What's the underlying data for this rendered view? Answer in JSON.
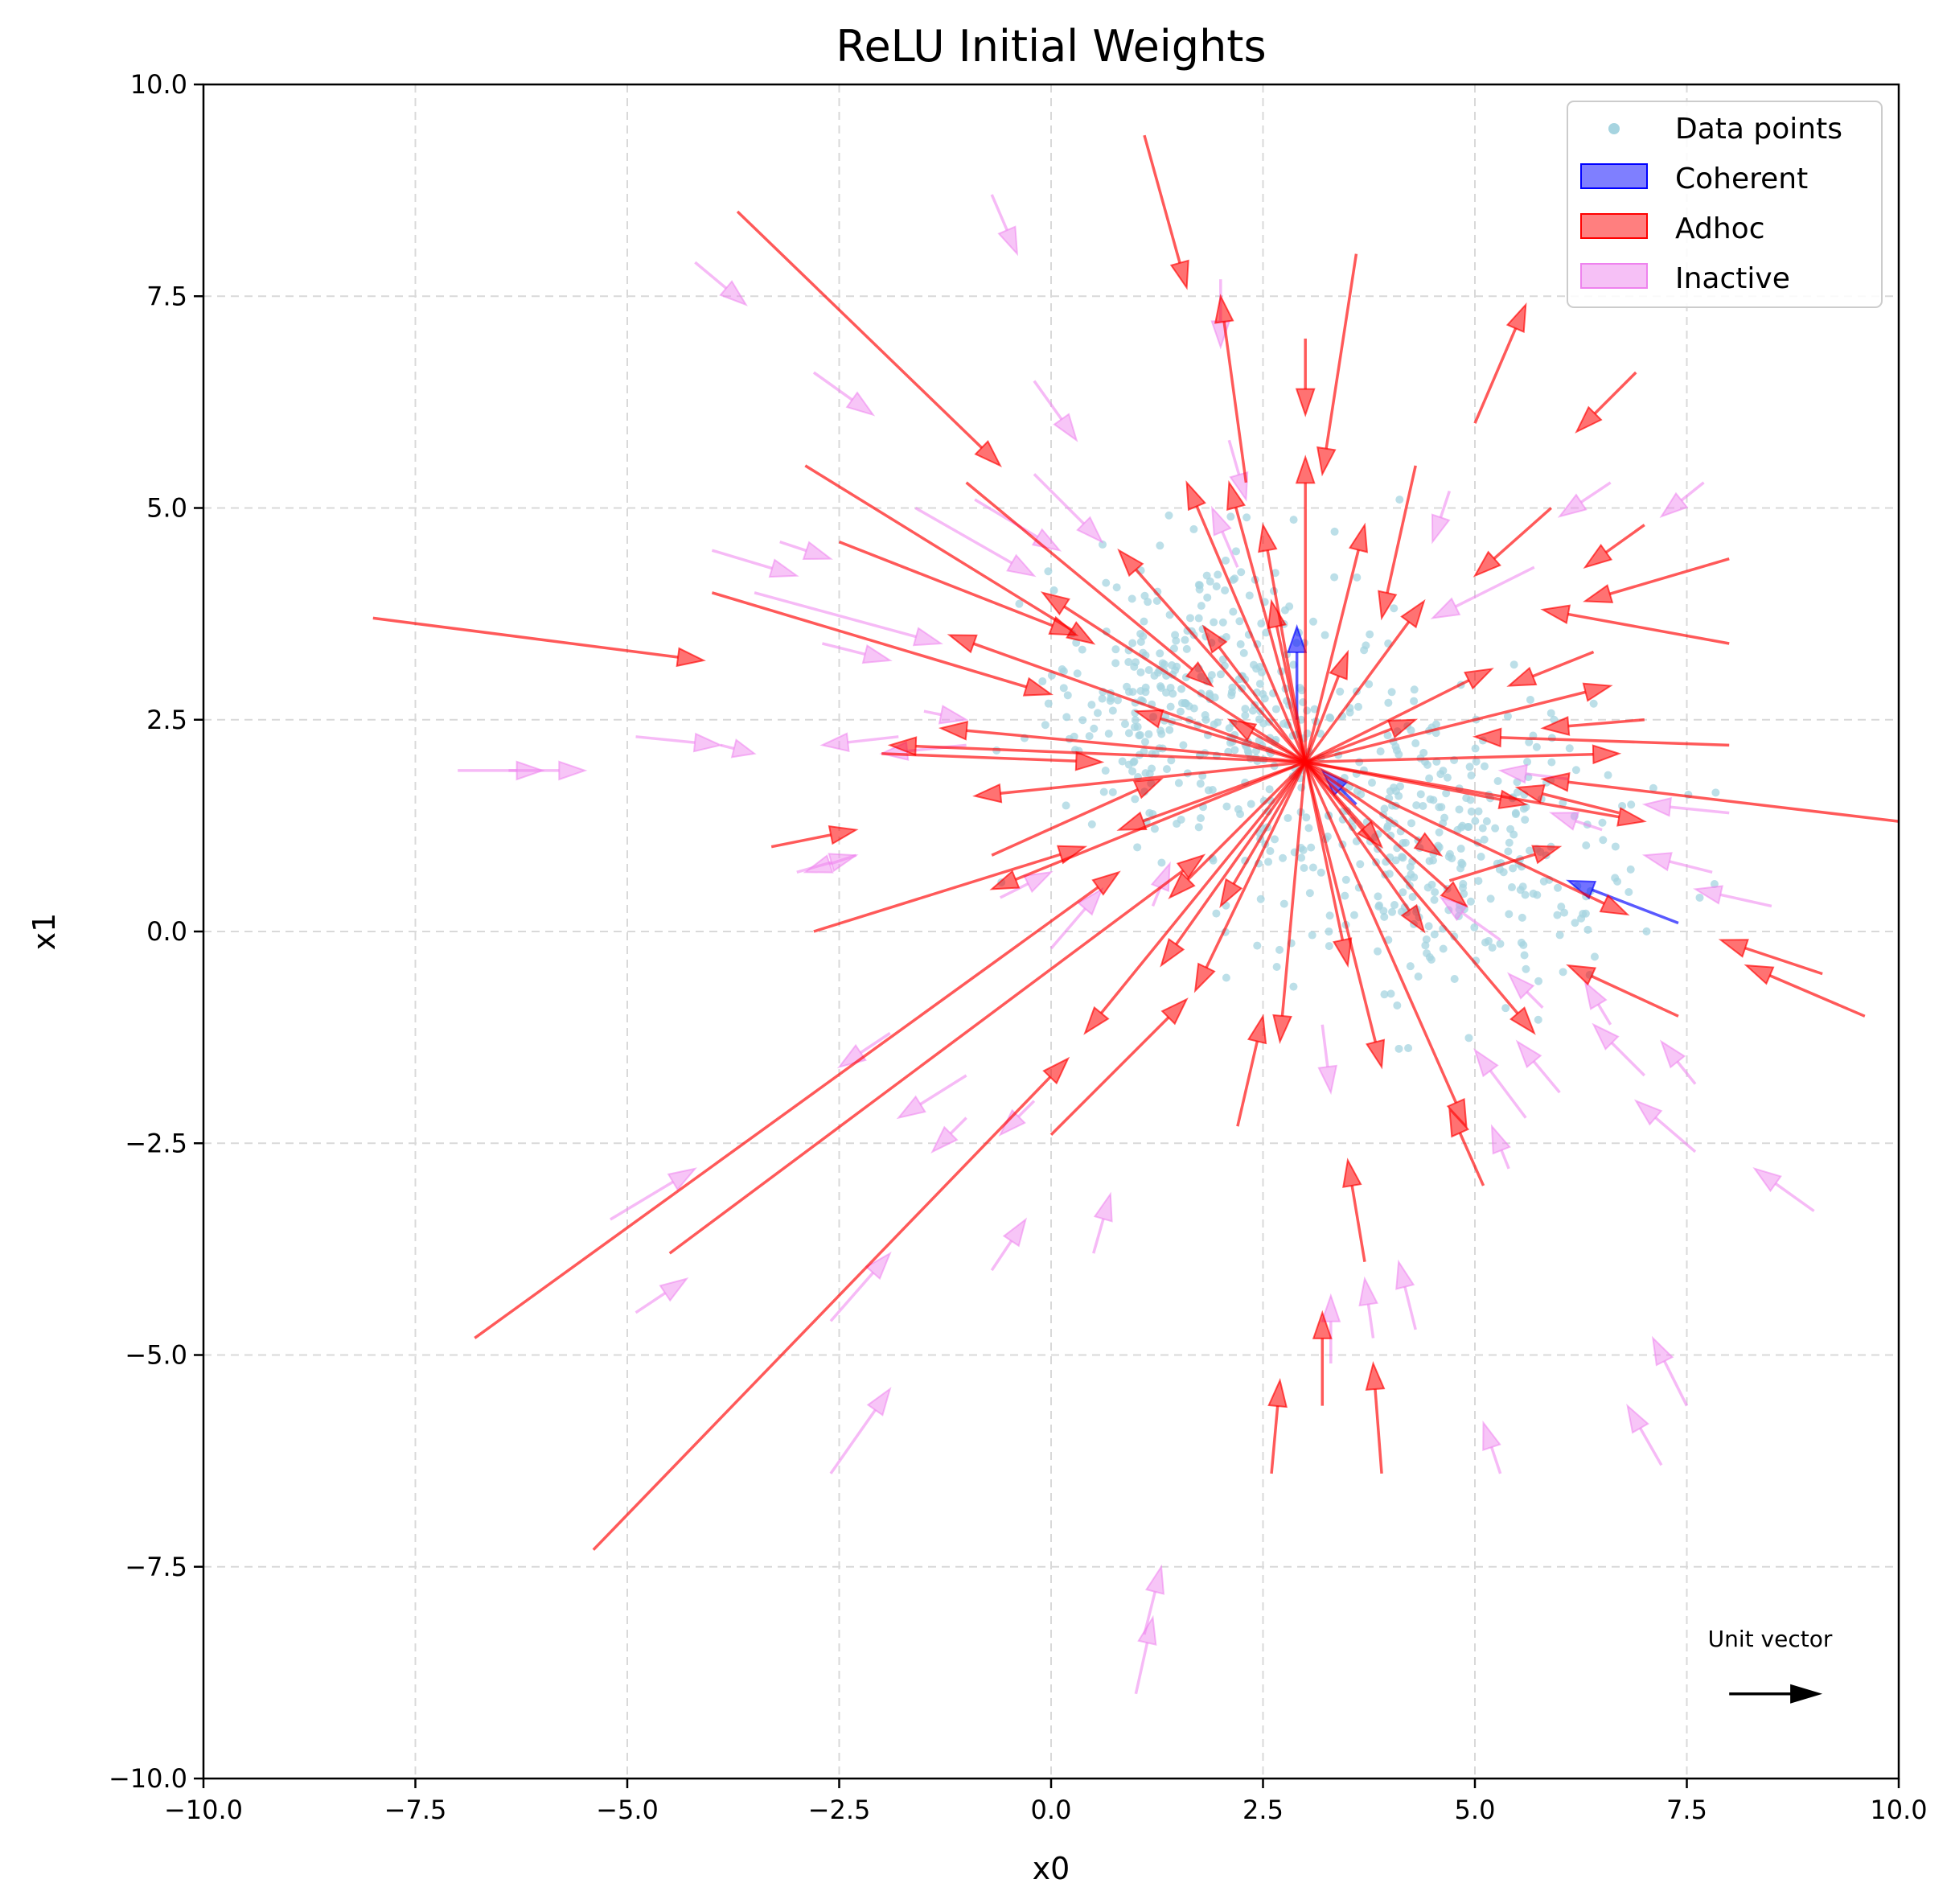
{
  "chart_data": {
    "type": "scatter",
    "title": "ReLU Initial Weights",
    "xlabel": "x0",
    "ylabel": "x1",
    "xlim": [
      -10,
      10
    ],
    "ylim": [
      -10,
      10
    ],
    "xticks": [
      -10,
      -7.5,
      -5,
      -2.5,
      0,
      2.5,
      5,
      7.5,
      10
    ],
    "yticks": [
      -10,
      -7.5,
      -5,
      -2.5,
      0,
      2.5,
      5,
      7.5,
      10
    ],
    "xtick_labels": [
      "−10.0",
      "−7.5",
      "−5.0",
      "−2.5",
      "0.0",
      "2.5",
      "5.0",
      "7.5",
      "10.0"
    ],
    "ytick_labels": [
      "−10.0",
      "−7.5",
      "−5.0",
      "−2.5",
      "0.0",
      "2.5",
      "5.0",
      "7.5",
      "10.0"
    ],
    "grid": true,
    "legend_position": "top-right",
    "legend": [
      {
        "label": "Data points",
        "kind": "dot",
        "color": "#a6d4e0"
      },
      {
        "label": "Coherent",
        "kind": "patch",
        "color": "#0000ff"
      },
      {
        "label": "Adhoc",
        "kind": "patch",
        "color": "#ff0000"
      },
      {
        "label": "Inactive",
        "kind": "patch",
        "color": "#ee82ee"
      }
    ],
    "colors": {
      "data": "#a6d4e0",
      "coherent": "#0000ff",
      "adhoc": "#ff0000",
      "inactive": "#ee82ee"
    },
    "data_points": {
      "cluster_1": {
        "center": [
          1.8,
          2.7
        ],
        "spread": [
          1.0,
          0.9
        ]
      },
      "cluster_2": {
        "center": [
          4.5,
          1.0
        ],
        "spread": [
          1.2,
          0.9
        ]
      },
      "count": 700
    },
    "arrow_groups": [
      {
        "name": "Coherent",
        "arrows": [
          [
            2.9,
            2.5,
            2.9,
            3.6
          ],
          [
            7.4,
            0.1,
            6.1,
            0.6
          ],
          [
            3.6,
            1.5,
            3.2,
            1.9
          ]
        ]
      },
      {
        "name": "Adhoc",
        "arrows": [
          [
            -8.0,
            3.7,
            -4.1,
            3.2
          ],
          [
            -3.7,
            8.5,
            -0.6,
            5.5
          ],
          [
            1.1,
            9.4,
            1.6,
            7.6
          ],
          [
            2.3,
            5.3,
            2.0,
            7.5
          ],
          [
            3.0,
            7.0,
            3.0,
            6.1
          ],
          [
            3.6,
            8.0,
            3.2,
            5.4
          ],
          [
            5.0,
            6.0,
            5.6,
            7.4
          ],
          [
            6.9,
            6.6,
            6.2,
            5.9
          ],
          [
            -2.9,
            5.5,
            0.5,
            3.4
          ],
          [
            -2.0,
            2.1,
            0.6,
            2.0
          ],
          [
            -3.3,
            1.0,
            -2.3,
            1.2
          ],
          [
            -2.8,
            0.0,
            0.4,
            1.0
          ],
          [
            -6.8,
            -4.8,
            0.8,
            0.7
          ],
          [
            -5.4,
            -7.3,
            0.2,
            -1.5
          ],
          [
            -4.5,
            -3.8,
            1.8,
            0.9
          ],
          [
            0.0,
            -2.4,
            1.6,
            -0.8
          ],
          [
            2.2,
            -2.3,
            2.5,
            -1.0
          ],
          [
            3.7,
            -3.9,
            3.5,
            -2.7
          ],
          [
            3.2,
            -5.6,
            3.2,
            -4.5
          ],
          [
            2.6,
            -6.4,
            2.7,
            -5.3
          ],
          [
            3.9,
            -6.4,
            3.8,
            -5.1
          ],
          [
            5.1,
            -3.0,
            4.7,
            -2.1
          ],
          [
            7.4,
            -1.0,
            6.1,
            -0.4
          ],
          [
            9.6,
            -1.0,
            8.2,
            -0.4
          ],
          [
            9.1,
            -0.5,
            7.9,
            -0.1
          ],
          [
            10.0,
            1.3,
            5.8,
            1.8
          ],
          [
            8.0,
            2.2,
            5.0,
            2.3
          ],
          [
            7.0,
            2.5,
            5.8,
            2.4
          ],
          [
            8.0,
            4.4,
            6.3,
            3.9
          ],
          [
            8.0,
            3.4,
            5.8,
            3.8
          ],
          [
            7.0,
            4.8,
            6.3,
            4.3
          ],
          [
            6.4,
            3.3,
            5.4,
            2.9
          ],
          [
            5.9,
            5.0,
            5.0,
            4.2
          ],
          [
            4.3,
            5.5,
            3.9,
            3.7
          ],
          [
            -4.0,
            4.0,
            0.0,
            2.8
          ],
          [
            -2.5,
            4.6,
            0.3,
            3.5
          ],
          [
            -1.0,
            5.3,
            1.9,
            2.9
          ],
          [
            -0.7,
            0.9,
            1.3,
            1.8
          ],
          [
            4.7,
            0.6,
            6.0,
            1.0
          ],
          [
            6.7,
            1.4,
            5.5,
            1.7
          ],
          [
            3.0,
            2.0,
            3.0,
            5.6
          ],
          [
            3.0,
            2.0,
            2.1,
            5.3
          ],
          [
            3.0,
            2.0,
            3.7,
            4.8
          ],
          [
            3.0,
            2.0,
            4.4,
            3.9
          ],
          [
            3.0,
            2.0,
            5.2,
            3.1
          ],
          [
            3.0,
            2.0,
            6.7,
            2.1
          ],
          [
            3.0,
            2.0,
            7.0,
            1.3
          ],
          [
            3.0,
            2.0,
            6.8,
            0.2
          ],
          [
            3.0,
            2.0,
            5.7,
            -1.2
          ],
          [
            3.0,
            2.0,
            4.9,
            -2.3
          ],
          [
            3.0,
            2.0,
            3.9,
            -1.6
          ],
          [
            3.0,
            2.0,
            2.7,
            -1.3
          ],
          [
            3.0,
            2.0,
            1.7,
            -0.7
          ],
          [
            3.0,
            2.0,
            0.4,
            -1.2
          ],
          [
            3.0,
            2.0,
            -0.7,
            0.5
          ],
          [
            3.0,
            2.0,
            -0.9,
            1.6
          ],
          [
            3.0,
            2.0,
            -1.9,
            2.2
          ],
          [
            3.0,
            2.0,
            -1.3,
            2.4
          ],
          [
            3.0,
            2.0,
            -1.2,
            3.5
          ],
          [
            3.0,
            2.0,
            -0.1,
            4.0
          ],
          [
            3.0,
            2.0,
            0.8,
            4.5
          ],
          [
            3.0,
            2.0,
            1.6,
            5.3
          ],
          [
            3.0,
            2.0,
            2.5,
            4.8
          ],
          [
            3.0,
            2.0,
            1.8,
            3.6
          ],
          [
            3.0,
            2.0,
            1.0,
            2.6
          ],
          [
            3.0,
            2.0,
            0.8,
            1.2
          ],
          [
            3.0,
            2.0,
            1.4,
            0.4
          ],
          [
            3.0,
            2.0,
            2.0,
            0.3
          ],
          [
            3.0,
            2.0,
            1.3,
            -0.4
          ],
          [
            3.0,
            2.0,
            4.4,
            0.0
          ],
          [
            3.0,
            2.0,
            4.6,
            0.9
          ],
          [
            3.0,
            2.0,
            5.6,
            1.5
          ],
          [
            3.0,
            2.0,
            6.6,
            2.9
          ],
          [
            3.0,
            2.0,
            4.3,
            2.5
          ],
          [
            3.0,
            2.0,
            3.5,
            3.3
          ],
          [
            3.0,
            2.0,
            2.6,
            3.9
          ],
          [
            3.0,
            2.0,
            2.1,
            2.5
          ],
          [
            3.0,
            2.0,
            3.9,
            1.0
          ],
          [
            3.0,
            2.0,
            4.9,
            0.3
          ],
          [
            3.0,
            2.0,
            3.5,
            -0.4
          ]
        ]
      },
      {
        "name": "Inactive",
        "arrows": [
          [
            -0.7,
            8.7,
            -0.4,
            8.0
          ],
          [
            -4.2,
            7.9,
            -3.6,
            7.4
          ],
          [
            -2.8,
            6.6,
            -2.1,
            6.1
          ],
          [
            -0.2,
            6.5,
            0.3,
            5.8
          ],
          [
            2.0,
            7.7,
            2.0,
            6.9
          ],
          [
            -3.2,
            4.6,
            -2.6,
            4.4
          ],
          [
            -4.0,
            4.5,
            -3.0,
            4.2
          ],
          [
            -2.7,
            3.4,
            -1.9,
            3.2
          ],
          [
            -3.5,
            4.0,
            -1.3,
            3.4
          ],
          [
            -1.6,
            5.0,
            -0.2,
            4.2
          ],
          [
            -0.9,
            5.1,
            0.1,
            4.5
          ],
          [
            -0.2,
            5.4,
            0.6,
            4.6
          ],
          [
            -1.5,
            2.6,
            -1.0,
            2.5
          ],
          [
            -4.9,
            2.3,
            -3.9,
            2.2
          ],
          [
            -3.9,
            2.2,
            -3.5,
            2.1
          ],
          [
            -7.0,
            1.9,
            -6.0,
            1.9
          ],
          [
            -6.4,
            1.9,
            -5.5,
            1.9
          ],
          [
            -3.0,
            0.7,
            -2.3,
            0.9
          ],
          [
            -1.0,
            2.2,
            -2.0,
            2.1
          ],
          [
            -1.8,
            2.3,
            -2.7,
            2.2
          ],
          [
            5.7,
            4.3,
            4.5,
            3.7
          ],
          [
            6.6,
            5.3,
            6.0,
            4.9
          ],
          [
            7.7,
            5.3,
            7.2,
            4.9
          ],
          [
            4.7,
            5.2,
            4.5,
            4.6
          ],
          [
            2.1,
            5.8,
            2.3,
            5.1
          ],
          [
            6.1,
            1.8,
            5.3,
            1.9
          ],
          [
            6.5,
            1.2,
            5.9,
            1.4
          ],
          [
            8.0,
            1.4,
            7.0,
            1.5
          ],
          [
            7.8,
            0.7,
            7.0,
            0.9
          ],
          [
            8.5,
            0.3,
            7.6,
            0.5
          ],
          [
            5.3,
            -0.1,
            4.6,
            0.4
          ],
          [
            5.8,
            -0.9,
            5.4,
            -0.5
          ],
          [
            6.6,
            -1.1,
            6.3,
            -0.6
          ],
          [
            7.0,
            -1.7,
            6.4,
            -1.1
          ],
          [
            7.6,
            -1.8,
            7.2,
            -1.3
          ],
          [
            7.6,
            -2.6,
            6.9,
            -2.0
          ],
          [
            5.6,
            -2.2,
            5.0,
            -1.4
          ],
          [
            5.4,
            -2.8,
            5.2,
            -2.3
          ],
          [
            6.0,
            -1.9,
            5.5,
            -1.3
          ],
          [
            9.0,
            -3.3,
            8.3,
            -2.8
          ],
          [
            7.5,
            -5.6,
            7.1,
            -4.8
          ],
          [
            7.2,
            -6.3,
            6.8,
            -5.6
          ],
          [
            5.3,
            -6.4,
            5.1,
            -5.8
          ],
          [
            4.3,
            -4.7,
            4.1,
            -3.9
          ],
          [
            3.8,
            -4.8,
            3.7,
            -4.1
          ],
          [
            3.3,
            -5.1,
            3.3,
            -4.3
          ],
          [
            3.2,
            -1.1,
            3.3,
            -1.9
          ],
          [
            -1.9,
            -1.2,
            -2.5,
            -1.6
          ],
          [
            -1.0,
            -1.7,
            -1.8,
            -2.2
          ],
          [
            -1.0,
            -2.2,
            -1.4,
            -2.6
          ],
          [
            -0.2,
            -2.0,
            -0.6,
            -2.4
          ],
          [
            -5.2,
            -3.4,
            -4.2,
            -2.8
          ],
          [
            -4.9,
            -4.5,
            -4.3,
            -4.1
          ],
          [
            -2.6,
            -4.6,
            -1.9,
            -3.8
          ],
          [
            -0.7,
            -4.0,
            -0.3,
            -3.4
          ],
          [
            0.5,
            -3.8,
            0.7,
            -3.1
          ],
          [
            -2.6,
            -6.4,
            -1.9,
            -5.4
          ],
          [
            1.0,
            -9.0,
            1.2,
            -8.1
          ],
          [
            1.1,
            -8.3,
            1.3,
            -7.5
          ],
          [
            0.0,
            -0.2,
            0.6,
            0.5
          ],
          [
            -0.6,
            0.4,
            0.0,
            0.7
          ],
          [
            -2.3,
            0.9,
            -2.9,
            0.7
          ],
          [
            1.2,
            0.3,
            1.4,
            0.8
          ],
          [
            2.2,
            4.3,
            1.9,
            5.0
          ]
        ]
      }
    ],
    "annotation": {
      "text": "Unit vector",
      "arrow": [
        8.0,
        -9.0,
        9.1,
        -9.0
      ]
    }
  }
}
